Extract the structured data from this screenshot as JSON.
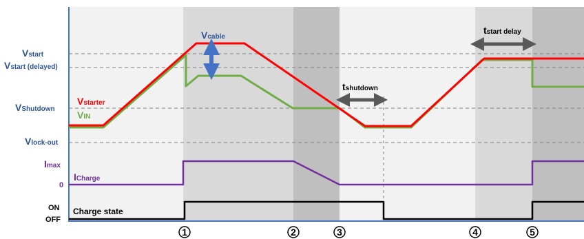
{
  "colors": {
    "bg_light": "#f2f2f2",
    "bg_mid": "#d9d9d9",
    "bg_dark": "#bfbfbf",
    "v_starter": "#ff0000",
    "v_in": "#70ad47",
    "i_charge": "#7030a0",
    "charge_state": "#000000",
    "axis": "#4472c4",
    "label_blue": "#2f5597",
    "arrow_blue": "#4472c4",
    "arrow_gray": "#595959",
    "grid": "#808080"
  },
  "labels": {
    "v_start": {
      "main": "V",
      "sub": "start"
    },
    "v_start_delayed": {
      "main": "V",
      "sub": "start (delayed)"
    },
    "v_shutdown": {
      "main": "V",
      "sub": "Shutdown"
    },
    "v_lockout": {
      "main": "V",
      "sub": "lock-out"
    },
    "i_max": {
      "main": "I",
      "sub": "max"
    },
    "i_zero": "0",
    "state_on": "ON",
    "state_off": "OFF",
    "v_starter": {
      "main": "V",
      "sub": "starter"
    },
    "v_in": {
      "main": "V",
      "sub": "IN"
    },
    "i_charge": {
      "main": "I",
      "sub": "Charge"
    },
    "charge_state": "Charge state",
    "v_cable": {
      "main": "V",
      "sub": "cable"
    },
    "t_shutdown": {
      "main": "t",
      "sub": "shutdown"
    },
    "t_start_delay": {
      "main": "t",
      "sub": "start delay"
    }
  },
  "markers": [
    "1",
    "2",
    "3",
    "4",
    "5"
  ]
}
